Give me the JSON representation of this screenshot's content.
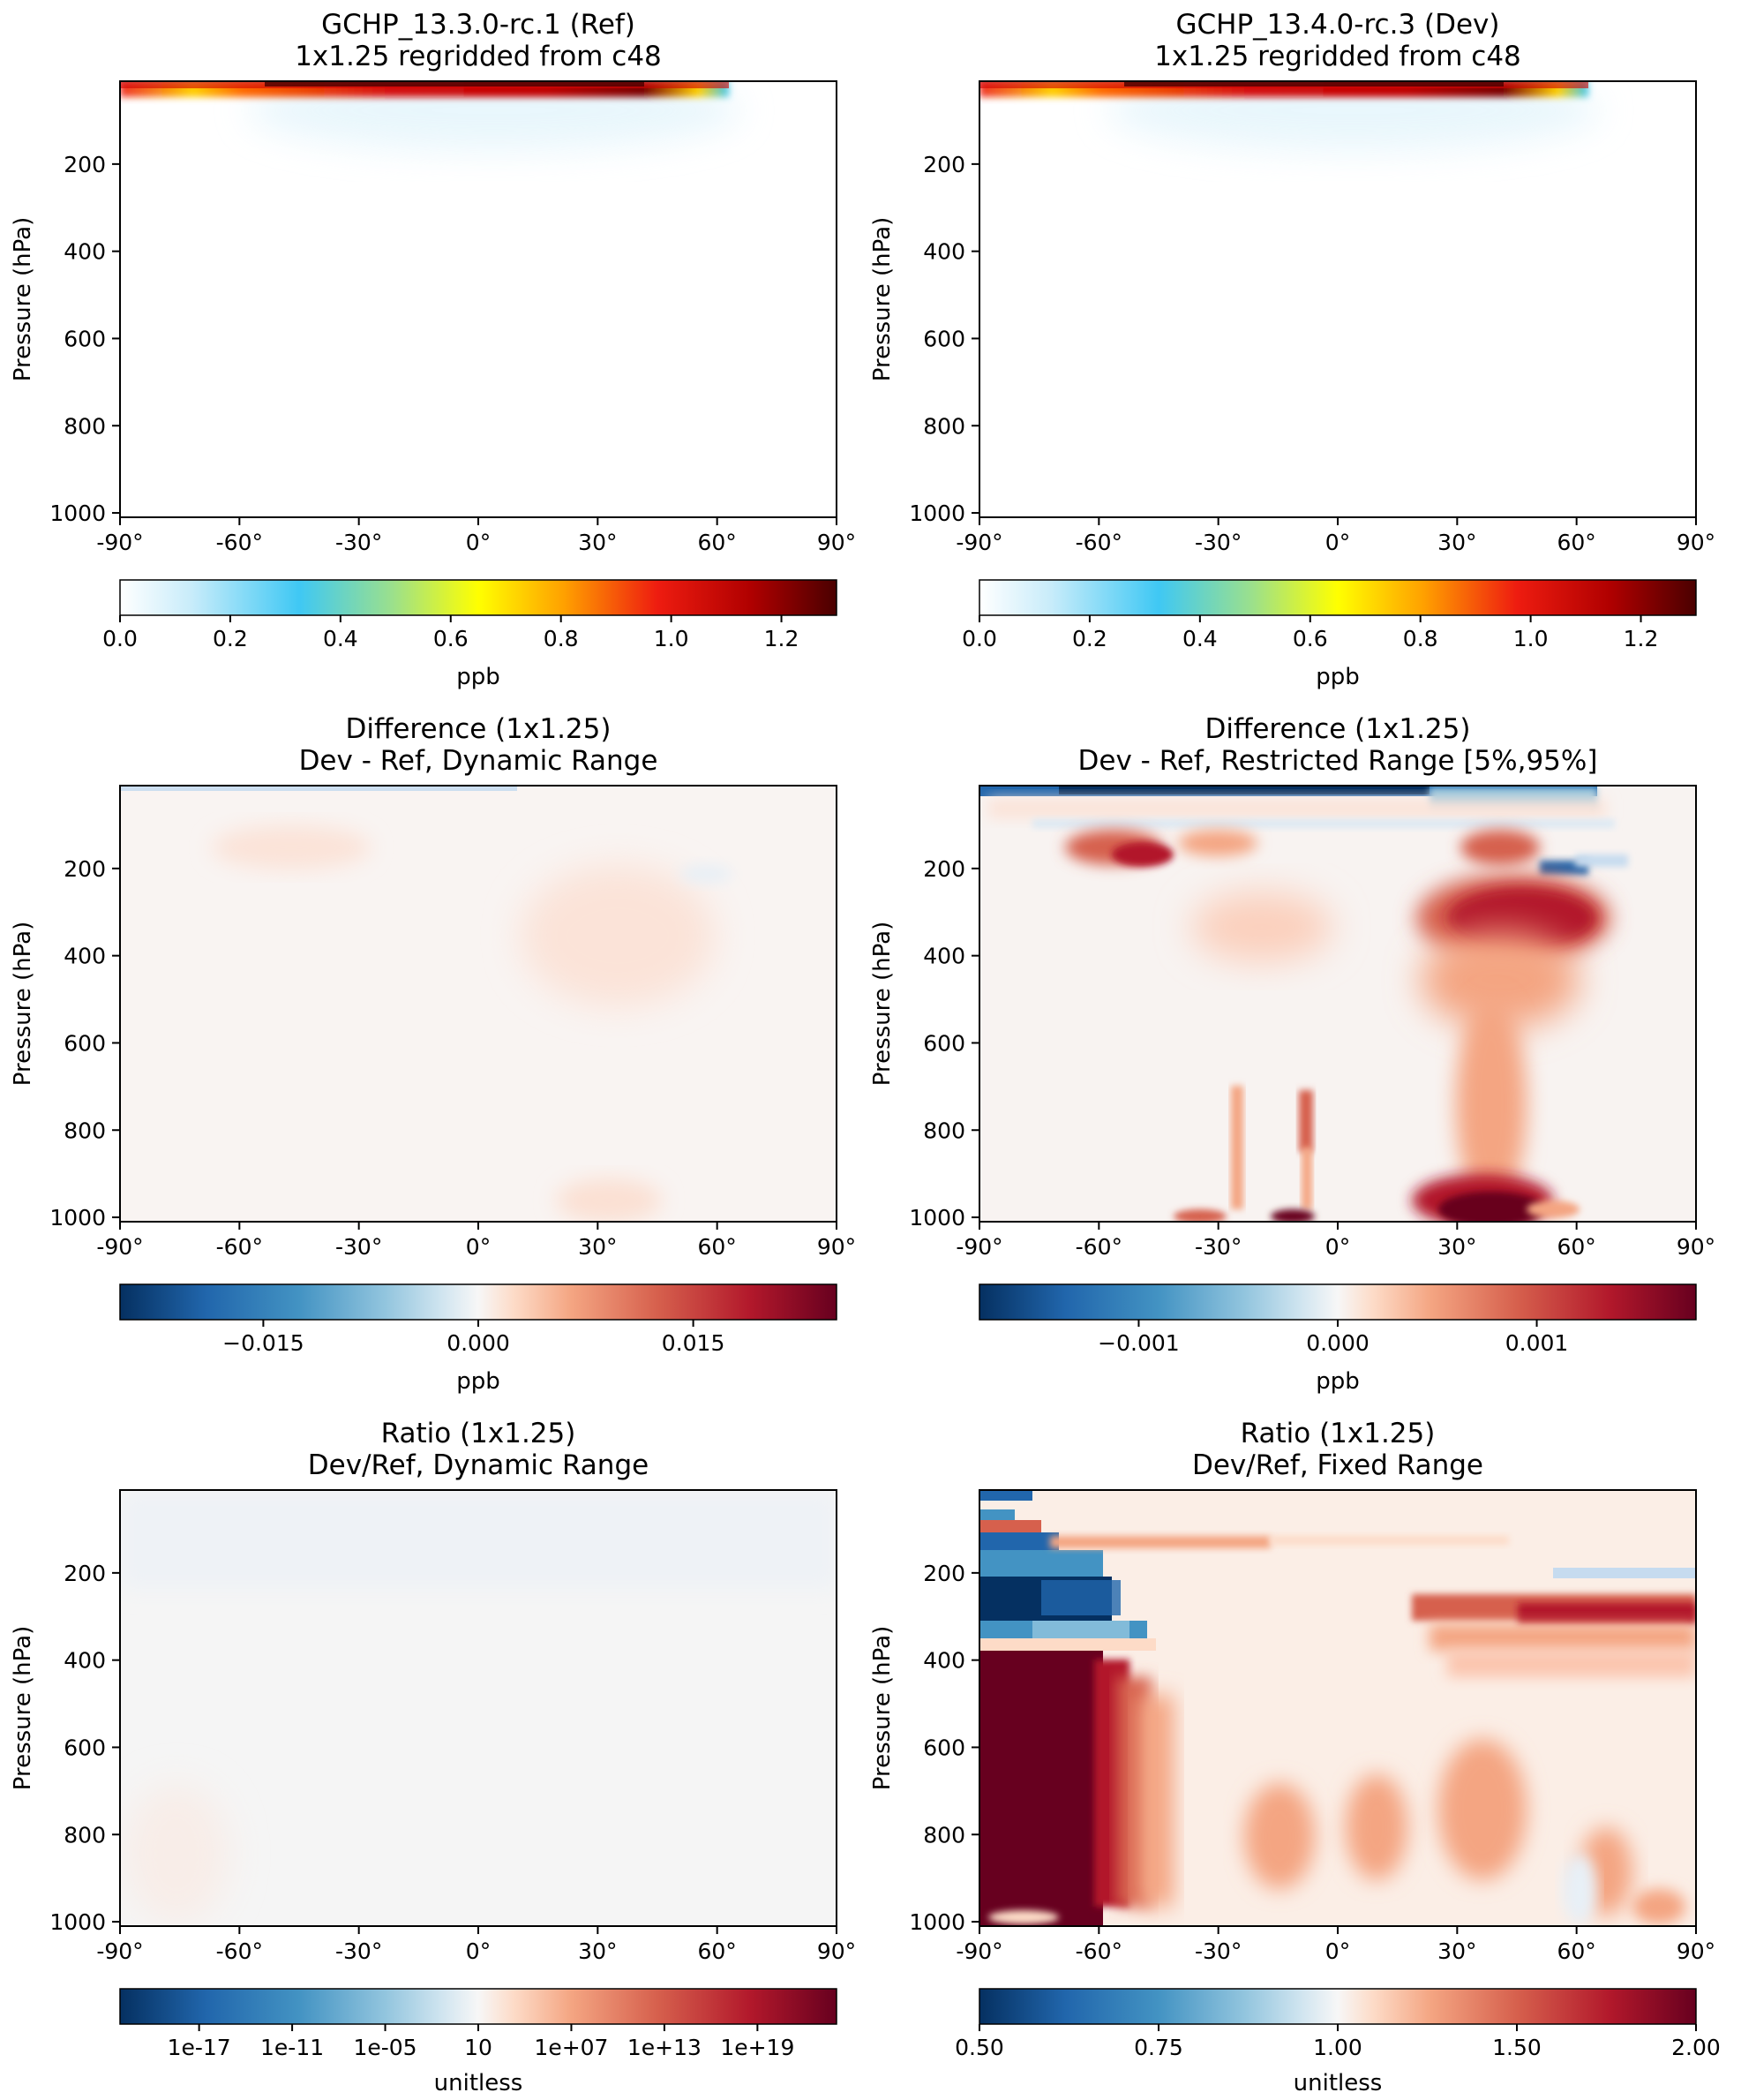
{
  "chart_data": [
    {
      "type": "heatmap",
      "title": "GCHP_13.3.0-rc.1 (Ref)",
      "subtitle": "1x1.25 regridded from c48",
      "ylabel": "Pressure (hPa)",
      "xticks": [
        "-90°",
        "-60°",
        "-30°",
        "0°",
        "30°",
        "60°",
        "90°"
      ],
      "yticks": [
        "200",
        "400",
        "600",
        "800",
        "1000"
      ],
      "colormap": "WhGrYlRd",
      "colorbar": {
        "ticks": [
          "0.0",
          "0.2",
          "0.4",
          "0.6",
          "0.8",
          "1.0",
          "1.2"
        ],
        "label": "ppb",
        "range": [
          0,
          1.3
        ]
      },
      "features": [
        {
          "lat": [
            -90,
            62
          ],
          "pressure_max": 40,
          "peak_value": 1.25,
          "peak_lat": 45
        }
      ]
    },
    {
      "type": "heatmap",
      "title": "GCHP_13.4.0-rc.3 (Dev)",
      "subtitle": "1x1.25 regridded from c48",
      "ylabel": "Pressure (hPa)",
      "xticks": [
        "-90°",
        "-60°",
        "-30°",
        "0°",
        "30°",
        "60°",
        "90°"
      ],
      "yticks": [
        "200",
        "400",
        "600",
        "800",
        "1000"
      ],
      "colormap": "WhGrYlRd",
      "colorbar": {
        "ticks": [
          "0.0",
          "0.2",
          "0.4",
          "0.6",
          "0.8",
          "1.0",
          "1.2"
        ],
        "label": "ppb",
        "range": [
          0,
          1.3
        ]
      },
      "features": [
        {
          "lat": [
            -90,
            62
          ],
          "pressure_max": 40,
          "peak_value": 1.25,
          "peak_lat": 45
        }
      ]
    },
    {
      "type": "heatmap",
      "title": "Difference (1x1.25)",
      "subtitle": "Dev - Ref, Dynamic Range",
      "ylabel": "Pressure (hPa)",
      "xticks": [
        "-90°",
        "-60°",
        "-30°",
        "0°",
        "30°",
        "60°",
        "90°"
      ],
      "yticks": [
        "200",
        "400",
        "600",
        "800",
        "1000"
      ],
      "colormap": "RdBu_r",
      "colorbar": {
        "ticks": [
          "−0.015",
          "0.000",
          "0.015"
        ],
        "label": "ppb",
        "range": [
          -0.025,
          0.025
        ]
      }
    },
    {
      "type": "heatmap",
      "title": "Difference (1x1.25)",
      "subtitle": "Dev - Ref, Restricted Range [5%,95%]",
      "ylabel": "Pressure (hPa)",
      "xticks": [
        "-90°",
        "-60°",
        "-30°",
        "0°",
        "30°",
        "60°",
        "90°"
      ],
      "yticks": [
        "200",
        "400",
        "600",
        "800",
        "1000"
      ],
      "colormap": "RdBu_r",
      "colorbar": {
        "ticks": [
          "−0.001",
          "0.000",
          "0.001"
        ],
        "label": "ppb",
        "range": [
          -0.0018,
          0.0018
        ]
      }
    },
    {
      "type": "heatmap",
      "title": "Ratio (1x1.25)",
      "subtitle": "Dev/Ref, Dynamic Range",
      "ylabel": "Pressure (hPa)",
      "xticks": [
        "-90°",
        "-60°",
        "-30°",
        "0°",
        "30°",
        "60°",
        "90°"
      ],
      "yticks": [
        "200",
        "400",
        "600",
        "800",
        "1000"
      ],
      "colormap": "RdBu_r",
      "colorbar": {
        "ticks": [
          "1e-17",
          "1e-11",
          "1e-05",
          "10",
          "1e+07",
          "1e+13",
          "1e+19"
        ],
        "label": "unitless",
        "scale": "log"
      }
    },
    {
      "type": "heatmap",
      "title": "Ratio (1x1.25)",
      "subtitle": "Dev/Ref, Fixed Range",
      "ylabel": "Pressure (hPa)",
      "xticks": [
        "-90°",
        "-60°",
        "-30°",
        "0°",
        "30°",
        "60°",
        "90°"
      ],
      "yticks": [
        "200",
        "400",
        "600",
        "800",
        "1000"
      ],
      "colormap": "RdBu_r",
      "colorbar": {
        "ticks": [
          "0.50",
          "0.75",
          "1.00",
          "1.50",
          "2.00"
        ],
        "label": "unitless",
        "range": [
          0.5,
          2.0
        ]
      }
    }
  ]
}
